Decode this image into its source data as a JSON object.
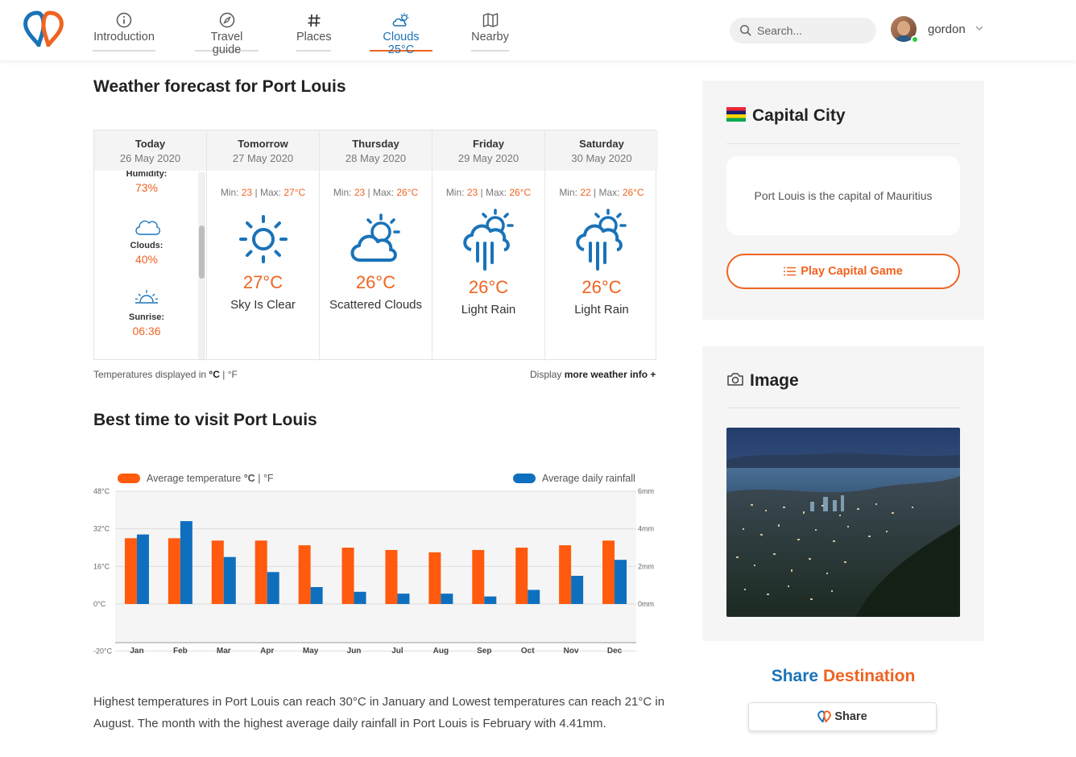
{
  "nav": {
    "items": [
      {
        "label": "Introduction",
        "icon": "info-circle-icon"
      },
      {
        "label": "Travel guide",
        "icon": "compass-icon"
      },
      {
        "label": "Places",
        "icon": "hash-icon"
      },
      {
        "label": "Clouds 25°C",
        "icon": "cloud-sun-icon"
      },
      {
        "label": "Nearby",
        "icon": "map-icon"
      }
    ],
    "active_index": 3
  },
  "search": {
    "placeholder": "Search..."
  },
  "user": {
    "name": "gordon"
  },
  "colors": {
    "accent_orange": "#f06320",
    "accent_blue": "#1a73b8",
    "panel_bg": "#f5f5f5"
  },
  "forecast": {
    "title": "Weather forecast for Port Louis",
    "today": {
      "name": "Today",
      "date": "26 May 2020",
      "items": [
        {
          "label": "Humidity:",
          "value": "73%",
          "icon": "humidity-icon"
        },
        {
          "label": "Clouds:",
          "value": "40%",
          "icon": "cloud-icon"
        },
        {
          "label": "Sunrise:",
          "value": "06:36",
          "icon": "sunrise-icon"
        }
      ]
    },
    "days": [
      {
        "name": "Tomorrow",
        "date": "27 May 2020",
        "min_label": "Min:",
        "min": "23",
        "sep": "|",
        "max_label": "Max:",
        "max": "27°C",
        "temp": "27°C",
        "desc": "Sky Is Clear",
        "icon": "sun-icon"
      },
      {
        "name": "Thursday",
        "date": "28 May 2020",
        "min_label": "Min:",
        "min": "23",
        "sep": "|",
        "max_label": "Max:",
        "max": "26°C",
        "temp": "26°C",
        "desc": "Scattered Clouds",
        "icon": "cloud-sun-icon"
      },
      {
        "name": "Friday",
        "date": "29 May 2020",
        "min_label": "Min:",
        "min": "23",
        "sep": "|",
        "max_label": "Max:",
        "max": "26°C",
        "temp": "26°C",
        "desc": "Light Rain",
        "icon": "rain-icon"
      },
      {
        "name": "Saturday",
        "date": "30 May 2020",
        "min_label": "Min:",
        "min": "22",
        "sep": "|",
        "max_label": "Max:",
        "max": "26°C",
        "temp": "26°C",
        "desc": "Light Rain",
        "icon": "rain-icon"
      }
    ],
    "units_note": {
      "prefix": "Temperatures displayed in",
      "c": "°C",
      "sep": "|",
      "f": "°F"
    },
    "more_info": {
      "prefix": "Display",
      "bold": "more weather info",
      "suffix": "+"
    }
  },
  "best_time": {
    "title": "Best time to visit Port Louis"
  },
  "chart_data": {
    "type": "bar",
    "categories": [
      "Jan",
      "Feb",
      "Mar",
      "Apr",
      "May",
      "Jun",
      "Jul",
      "Aug",
      "Sep",
      "Oct",
      "Nov",
      "Dec"
    ],
    "series": [
      {
        "name": "Average temperature",
        "axis": "left",
        "unit": "°C",
        "color": "#ff5a0e",
        "values": [
          28,
          28,
          27,
          27,
          25,
          24,
          23,
          22,
          23,
          24,
          25,
          27
        ]
      },
      {
        "name": "Average daily rainfall",
        "axis": "right",
        "unit": "mm",
        "color": "#0f6fbf",
        "values": [
          3.7,
          4.41,
          2.5,
          1.7,
          0.9,
          0.65,
          0.55,
          0.55,
          0.4,
          0.75,
          1.5,
          2.35
        ]
      }
    ],
    "left_axis": {
      "ticks": [
        "48°C",
        "32°C",
        "16°C",
        "0°C",
        "-20°C"
      ],
      "tick_values": [
        48,
        32,
        16,
        0,
        -20
      ],
      "range": [
        -16,
        48
      ]
    },
    "right_axis": {
      "ticks": [
        "6mm",
        "4mm",
        "2mm",
        "0mm"
      ],
      "tick_values": [
        6,
        4,
        2,
        0
      ],
      "range": [
        -2,
        6
      ]
    },
    "legend": {
      "temp_label": "Average temperature",
      "temp_unit_c": "°C",
      "temp_unit_sep": "|",
      "temp_unit_f": "°F",
      "rain_label": "Average daily rainfall"
    },
    "grid": true
  },
  "summary": "Highest temperatures in Port Louis can reach 30°C in January and Lowest temperatures can reach 21°C in August. The month with the highest average daily rainfall in Port Louis is February with 4.41mm.",
  "capital_panel": {
    "title": "Capital City",
    "fact": "Port Louis is the capital of Mauritius",
    "button": "Play Capital Game"
  },
  "image_panel": {
    "title": "Image"
  },
  "share": {
    "title_a": "Share",
    "title_b": "Destination",
    "button": "Share"
  }
}
